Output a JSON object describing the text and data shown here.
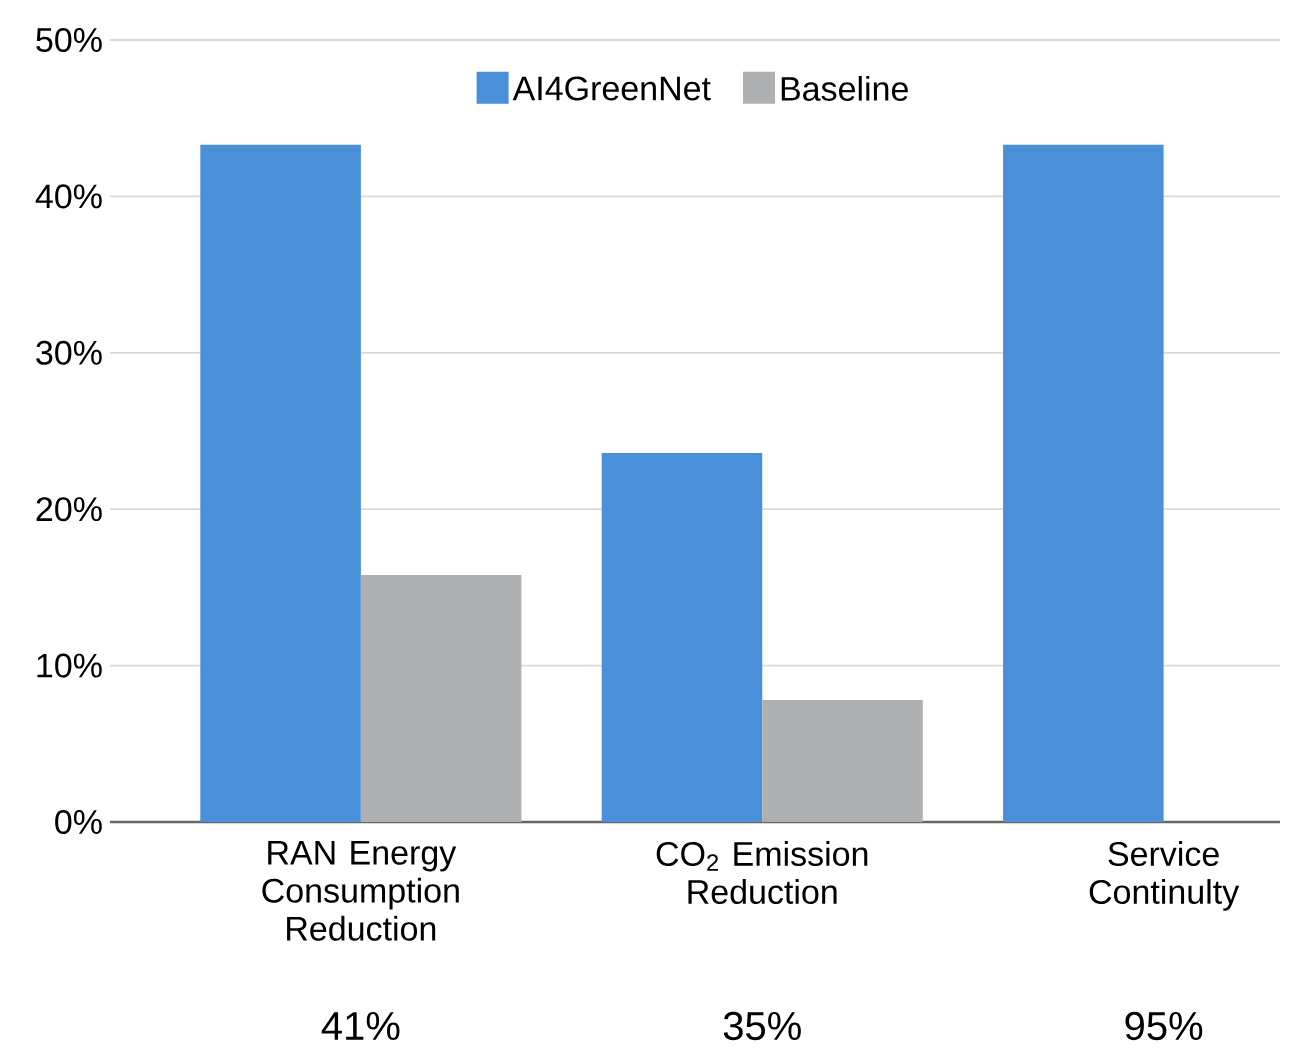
{
  "chart_data": {
    "type": "bar",
    "categories": [
      "RAN Energy Consumption Reduction",
      "CO$_{2}$ Emission Reduction",
      "Service Continulty"
    ],
    "series": [
      {
        "name": "AI4GreenNet",
        "color": "#4a90d9",
        "values": [
          43.3,
          23.6,
          43.3
        ]
      },
      {
        "name": "Baseline",
        "color": "#aeb0b2",
        "values": [
          15.8,
          7.8,
          null
        ]
      }
    ],
    "ylim": [
      0,
      50
    ],
    "yticks": [
      {
        "value": 0,
        "label": "0%"
      },
      {
        "value": 10,
        "label": "10%"
      },
      {
        "value": 20,
        "label": "20%"
      },
      {
        "value": 30,
        "label": "30%"
      },
      {
        "value": 40,
        "label": "40%"
      },
      {
        "value": 50,
        "label": "50%"
      }
    ],
    "grid": "y",
    "legend": "top",
    "annotations": [
      "41%",
      "35%",
      "95%"
    ]
  }
}
